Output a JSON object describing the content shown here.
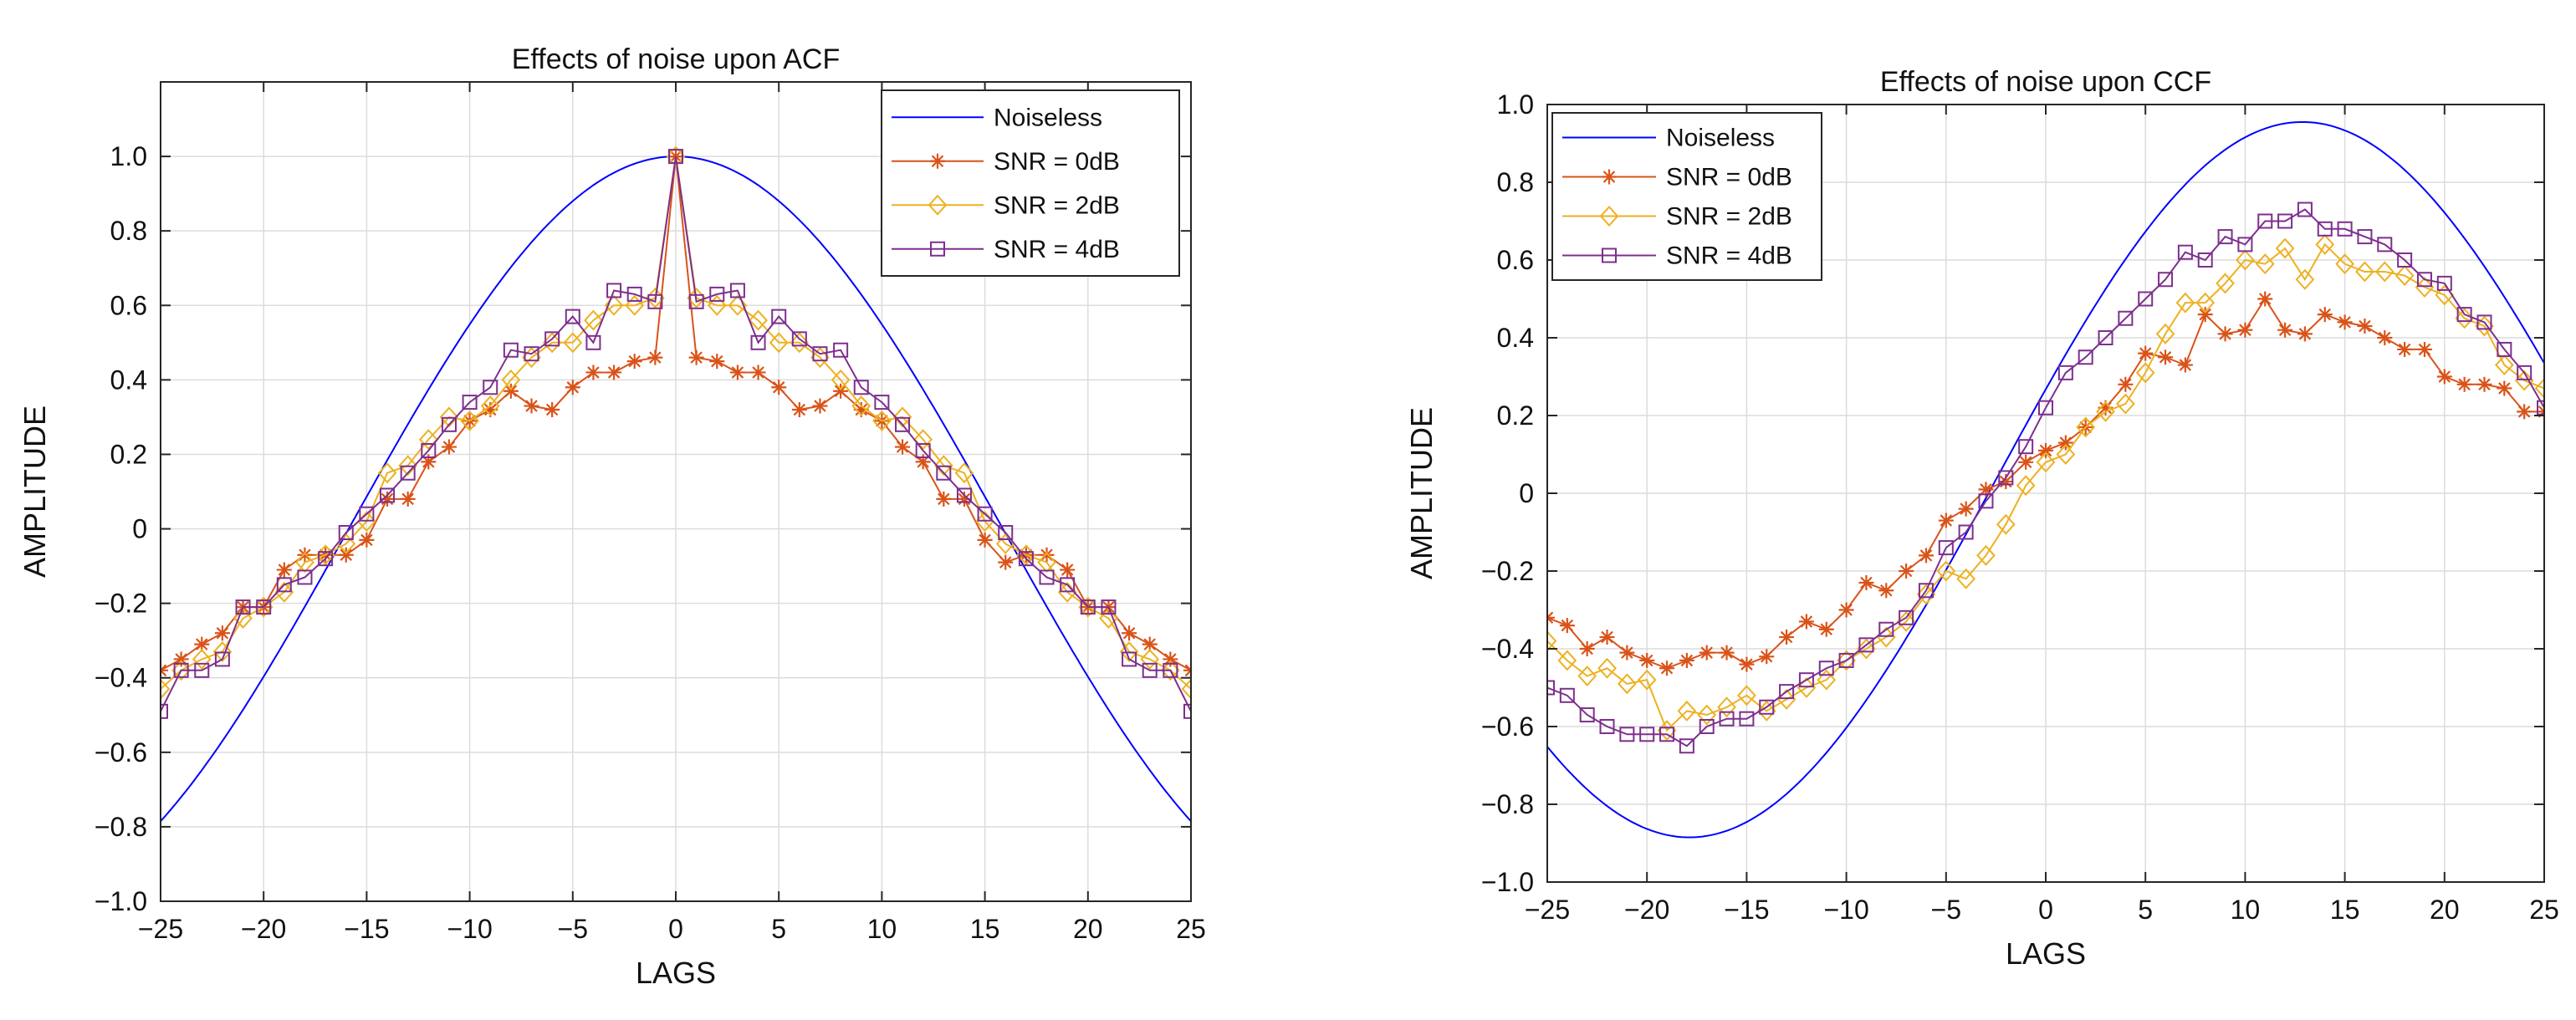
{
  "chart_data": [
    {
      "type": "line",
      "title": "Effects of noise upon ACF",
      "xlabel": "LAGS",
      "ylabel": "AMPLITUDE",
      "xlim": [
        -25,
        25
      ],
      "ylim": [
        -1.0,
        1.2
      ],
      "xticks": [
        -25,
        -20,
        -15,
        -10,
        -5,
        0,
        5,
        10,
        15,
        20,
        25
      ],
      "xtick_labels": [
        "−25",
        "−20",
        "−15",
        "−10",
        "−5",
        "0",
        "5",
        "10",
        "15",
        "20",
        "25"
      ],
      "yticks": [
        -1.0,
        -0.8,
        -0.6,
        -0.4,
        -0.2,
        0,
        0.2,
        0.4,
        0.6,
        0.8,
        1.0
      ],
      "ytick_labels": [
        "−1.0",
        "−0.8",
        "−0.6",
        "−0.4",
        "−0.2",
        "0",
        "0.2",
        "0.4",
        "0.6",
        "0.8",
        "1.0"
      ],
      "grid": true,
      "legend_position": "top-right",
      "x": [
        -25,
        -24,
        -23,
        -22,
        -21,
        -20,
        -19,
        -18,
        -17,
        -16,
        -15,
        -14,
        -13,
        -12,
        -11,
        -10,
        -9,
        -8,
        -7,
        -6,
        -5,
        -4,
        -3,
        -2,
        -1,
        0,
        1,
        2,
        3,
        4,
        5,
        6,
        7,
        8,
        9,
        10,
        11,
        12,
        13,
        14,
        15,
        16,
        17,
        18,
        19,
        20,
        21,
        22,
        23,
        24,
        25
      ],
      "series": [
        {
          "name": "Noiseless",
          "color": "#0000ff",
          "marker": "none",
          "function": "cos",
          "amplitude": 1.0,
          "period_lags": 63.5,
          "phase_lag": 0
        },
        {
          "name": "SNR = 0dB",
          "color": "#d95319",
          "marker": "star",
          "values": [
            -0.38,
            -0.35,
            -0.31,
            -0.28,
            -0.21,
            -0.21,
            -0.11,
            -0.07,
            -0.07,
            -0.07,
            -0.03,
            0.08,
            0.08,
            0.18,
            0.22,
            0.29,
            0.32,
            0.37,
            0.33,
            0.32,
            0.38,
            0.42,
            0.42,
            0.45,
            0.46,
            1.0,
            0.46,
            0.45,
            0.42,
            0.42,
            0.38,
            0.32,
            0.33,
            0.37,
            0.32,
            0.29,
            0.22,
            0.18,
            0.08,
            0.08,
            -0.03,
            -0.09,
            -0.07,
            -0.07,
            -0.11,
            -0.21,
            -0.21,
            -0.28,
            -0.31,
            -0.35,
            -0.38
          ]
        },
        {
          "name": "SNR = 2dB",
          "color": "#edb120",
          "marker": "diamond",
          "values": [
            -0.43,
            -0.38,
            -0.35,
            -0.33,
            -0.24,
            -0.21,
            -0.17,
            -0.09,
            -0.07,
            -0.04,
            0.02,
            0.15,
            0.17,
            0.24,
            0.3,
            0.29,
            0.33,
            0.4,
            0.46,
            0.5,
            0.5,
            0.56,
            0.6,
            0.6,
            0.62,
            1.0,
            0.62,
            0.6,
            0.6,
            0.56,
            0.5,
            0.5,
            0.46,
            0.4,
            0.33,
            0.29,
            0.3,
            0.24,
            0.17,
            0.15,
            0.02,
            -0.04,
            -0.07,
            -0.09,
            -0.17,
            -0.21,
            -0.24,
            -0.33,
            -0.35,
            -0.38,
            -0.43
          ]
        },
        {
          "name": "SNR = 4dB",
          "color": "#7e2f8e",
          "marker": "square",
          "values": [
            -0.49,
            -0.38,
            -0.38,
            -0.35,
            -0.21,
            -0.21,
            -0.15,
            -0.13,
            -0.08,
            -0.01,
            0.04,
            0.09,
            0.15,
            0.21,
            0.28,
            0.34,
            0.38,
            0.48,
            0.47,
            0.51,
            0.57,
            0.5,
            0.64,
            0.63,
            0.61,
            1.0,
            0.61,
            0.63,
            0.64,
            0.5,
            0.57,
            0.51,
            0.47,
            0.48,
            0.38,
            0.34,
            0.28,
            0.21,
            0.15,
            0.09,
            0.04,
            -0.01,
            -0.08,
            -0.13,
            -0.15,
            -0.21,
            -0.21,
            -0.35,
            -0.38,
            -0.38,
            -0.49
          ]
        }
      ]
    },
    {
      "type": "line",
      "title": "Effects of noise upon CCF",
      "xlabel": "LAGS",
      "ylabel": "AMPLITUDE",
      "xlim": [
        -25,
        25
      ],
      "ylim": [
        -1.0,
        1.0
      ],
      "xticks": [
        -25,
        -20,
        -15,
        -10,
        -5,
        0,
        5,
        10,
        15,
        20,
        25
      ],
      "xtick_labels": [
        "−25",
        "−20",
        "−15",
        "−10",
        "−5",
        "0",
        "5",
        "10",
        "15",
        "20",
        "25"
      ],
      "yticks": [
        -1.0,
        -0.8,
        -0.6,
        -0.4,
        -0.2,
        0,
        0.2,
        0.4,
        0.6,
        0.8,
        1.0
      ],
      "ytick_labels": [
        "−1.0",
        "−0.8",
        "−0.6",
        "−0.4",
        "−0.2",
        "0",
        "0.2",
        "0.4",
        "0.6",
        "0.8",
        "1.0"
      ],
      "grid": true,
      "legend_position": "top-left",
      "x": [
        -25,
        -24,
        -23,
        -22,
        -21,
        -20,
        -19,
        -18,
        -17,
        -16,
        -15,
        -14,
        -13,
        -12,
        -11,
        -10,
        -9,
        -8,
        -7,
        -6,
        -5,
        -4,
        -3,
        -2,
        -1,
        0,
        1,
        2,
        3,
        4,
        5,
        6,
        7,
        8,
        9,
        10,
        11,
        12,
        13,
        14,
        15,
        16,
        17,
        18,
        19,
        20,
        21,
        22,
        23,
        24,
        25
      ],
      "series": [
        {
          "name": "Noiseless",
          "color": "#0000ff",
          "marker": "none",
          "function": "sin",
          "amplitude": 0.92,
          "offset": 0.035,
          "period_lags": 61.5,
          "phase_lag": -2.5
        },
        {
          "name": "SNR = 0dB",
          "color": "#d95319",
          "marker": "star",
          "values": [
            -0.32,
            -0.34,
            -0.4,
            -0.37,
            -0.41,
            -0.43,
            -0.45,
            -0.43,
            -0.41,
            -0.41,
            -0.44,
            -0.42,
            -0.37,
            -0.33,
            -0.35,
            -0.3,
            -0.23,
            -0.25,
            -0.2,
            -0.16,
            -0.07,
            -0.04,
            0.01,
            0.03,
            0.08,
            0.11,
            0.13,
            0.17,
            0.22,
            0.28,
            0.36,
            0.35,
            0.33,
            0.46,
            0.41,
            0.42,
            0.5,
            0.42,
            0.41,
            0.46,
            0.44,
            0.43,
            0.4,
            0.37,
            0.37,
            0.3,
            0.28,
            0.28,
            0.27,
            0.21,
            0.21
          ]
        },
        {
          "name": "SNR = 2dB",
          "color": "#edb120",
          "marker": "diamond",
          "values": [
            -0.38,
            -0.43,
            -0.47,
            -0.45,
            -0.49,
            -0.48,
            -0.61,
            -0.56,
            -0.57,
            -0.55,
            -0.52,
            -0.56,
            -0.53,
            -0.5,
            -0.48,
            -0.43,
            -0.4,
            -0.37,
            -0.33,
            -0.26,
            -0.2,
            -0.22,
            -0.16,
            -0.08,
            0.02,
            0.08,
            0.1,
            0.17,
            0.21,
            0.23,
            0.31,
            0.41,
            0.49,
            0.49,
            0.54,
            0.6,
            0.59,
            0.63,
            0.55,
            0.64,
            0.59,
            0.57,
            0.57,
            0.56,
            0.53,
            0.51,
            0.45,
            0.43,
            0.33,
            0.29,
            0.27
          ]
        },
        {
          "name": "SNR = 4dB",
          "color": "#7e2f8e",
          "marker": "square",
          "values": [
            -0.5,
            -0.52,
            -0.57,
            -0.6,
            -0.62,
            -0.62,
            -0.62,
            -0.65,
            -0.6,
            -0.58,
            -0.58,
            -0.55,
            -0.51,
            -0.48,
            -0.45,
            -0.43,
            -0.39,
            -0.35,
            -0.32,
            -0.25,
            -0.14,
            -0.1,
            -0.02,
            0.04,
            0.12,
            0.22,
            0.31,
            0.35,
            0.4,
            0.45,
            0.5,
            0.55,
            0.62,
            0.6,
            0.66,
            0.64,
            0.7,
            0.7,
            0.73,
            0.68,
            0.68,
            0.66,
            0.64,
            0.6,
            0.55,
            0.54,
            0.46,
            0.44,
            0.37,
            0.31,
            0.22
          ]
        }
      ]
    }
  ]
}
